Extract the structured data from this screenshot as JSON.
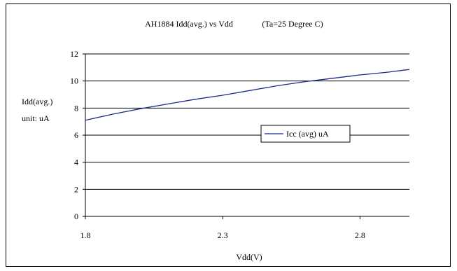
{
  "chart_data": {
    "type": "line",
    "title": "AH1884 Idd(avg.) vs Vdd",
    "subtitle": "(Ta=25 Degree C)",
    "xlabel": "Vdd(V)",
    "ylabel_lines": [
      "Idd(avg.)",
      "unit:  uA"
    ],
    "xlim": [
      1.8,
      2.98
    ],
    "ylim": [
      0,
      12
    ],
    "x_ticks": [
      1.8,
      2.3,
      2.8
    ],
    "x_tick_labels": [
      "1.8",
      "2.3",
      "2.8"
    ],
    "y_ticks": [
      0,
      2,
      4,
      6,
      8,
      10,
      12
    ],
    "y_tick_labels": [
      "0",
      "2",
      "4",
      "6",
      "8",
      "10",
      "12"
    ],
    "grid": "horizontal",
    "legend_position": "inside-right",
    "series": [
      {
        "name": "Icc (avg) uA",
        "color": "#1f2a8a",
        "x": [
          1.8,
          1.9,
          2.0,
          2.1,
          2.2,
          2.3,
          2.4,
          2.5,
          2.6,
          2.7,
          2.8,
          2.9,
          2.98
        ],
        "y": [
          7.1,
          7.55,
          7.95,
          8.3,
          8.65,
          8.95,
          9.3,
          9.65,
          9.95,
          10.2,
          10.45,
          10.65,
          10.85
        ]
      }
    ]
  }
}
